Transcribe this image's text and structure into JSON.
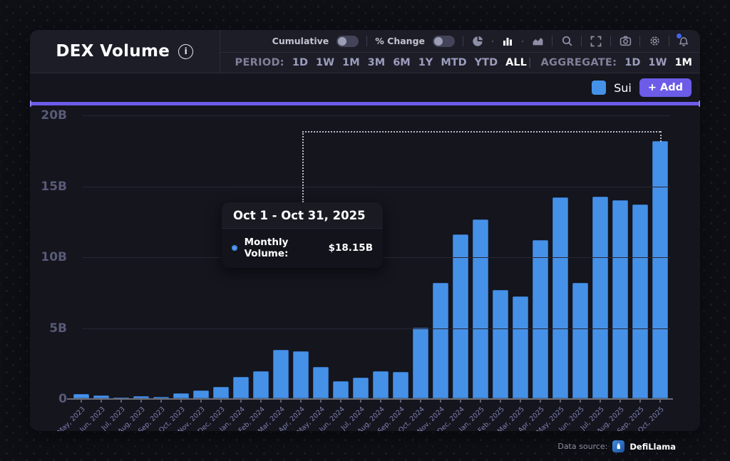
{
  "header": {
    "title": "DEX Volume",
    "toolbar": {
      "cumulative_label": "Cumulative",
      "pct_change_label": "% Change",
      "icons": [
        "pie-chart-icon",
        "bar-chart-icon",
        "area-chart-icon",
        "search-icon",
        "fullscreen-icon",
        "camera-icon",
        "gear-icon",
        "bell-icon"
      ],
      "active_chart_type": "bar"
    },
    "period": {
      "label": "PERIOD:",
      "options": [
        "1D",
        "1W",
        "1M",
        "3M",
        "6M",
        "1Y",
        "MTD",
        "YTD",
        "ALL"
      ],
      "active": "ALL"
    },
    "aggregate": {
      "label": "AGGREGATE:",
      "options": [
        "1D",
        "1W",
        "1M"
      ],
      "active": "1M"
    },
    "group_separator": "|"
  },
  "legend": {
    "series_label": "Sui",
    "add_button_label": "+ Add"
  },
  "tooltip": {
    "title": "Oct 1 - Oct 31, 2025",
    "row_label": "Monthly Volume:",
    "row_value": "$18.15B"
  },
  "footer": {
    "label": "Data source:",
    "brand": "DefiLlama"
  },
  "colors": {
    "bar_blue": "#4691e8",
    "accent_purple": "#6c5ce8",
    "notification_blue": "#4263eb"
  },
  "chart_data": {
    "type": "bar",
    "title": "DEX Volume",
    "series_name": "Sui",
    "categories": [
      "May, 2023",
      "Jun, 2023",
      "Jul, 2023",
      "Aug, 2023",
      "Sep, 2023",
      "Oct, 2023",
      "Nov, 2023",
      "Dec, 2023",
      "Jan, 2024",
      "Feb, 2024",
      "Mar, 2024",
      "Apr, 2024",
      "May, 2024",
      "Jun, 2024",
      "Jul, 2024",
      "Aug, 2024",
      "Sep, 2024",
      "Oct, 2024",
      "Nov, 2024",
      "Dec, 2024",
      "Jan, 2025",
      "Feb, 2025",
      "Mar, 2025",
      "Apr, 2025",
      "May, 2025",
      "Jun, 2025",
      "Jul, 2025",
      "Aug, 2025",
      "Sep, 2025",
      "Oct, 2025"
    ],
    "values": [
      0.28,
      0.2,
      0.06,
      0.13,
      0.08,
      0.33,
      0.53,
      0.78,
      1.5,
      1.9,
      3.4,
      3.3,
      2.2,
      1.2,
      1.45,
      1.9,
      1.85,
      5.0,
      8.15,
      11.55,
      12.6,
      7.65,
      7.2,
      11.15,
      14.15,
      8.15,
      14.2,
      13.95,
      13.65,
      18.15
    ],
    "unit": "B (USD)",
    "ylim": [
      0,
      20
    ],
    "y_ticks": [
      {
        "label": "20B",
        "value": 20
      },
      {
        "label": "15B",
        "value": 15
      },
      {
        "label": "10B",
        "value": 10
      },
      {
        "label": "5B",
        "value": 5
      },
      {
        "label": "0",
        "value": 0
      }
    ],
    "grid": true,
    "legend_position": "top-right",
    "highlighted_index": 29
  }
}
